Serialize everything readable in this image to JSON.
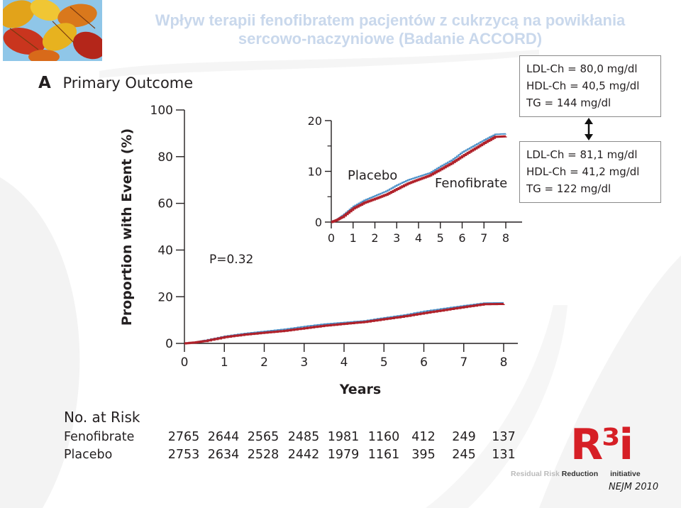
{
  "slide": {
    "title_line1": "Wpływ terapii fenofibratem pacjentów z  cukrzycą na powikłania",
    "title_line2": "sercowo-naczyniowe (Badanie ACCORD)"
  },
  "panel": {
    "letter": "A",
    "title": "Primary Outcome",
    "pvalue": "P=0.32"
  },
  "lipids": {
    "placebo_box": [
      "LDL-Ch = 80,0 mg/dl",
      "HDL-Ch = 40,5 mg/dl",
      "TG = 144 mg/dl"
    ],
    "fenofibrate_box": [
      "LDL-Ch = 81,1 mg/dl",
      "HDL-Ch = 41,2 mg/dl",
      "TG = 122 mg/dl"
    ]
  },
  "risk_table": {
    "header": "No. at Risk",
    "rows": [
      {
        "label": "Fenofibrate",
        "values": [
          "2765",
          "2644",
          "2565",
          "2485",
          "1981",
          "1160",
          "412",
          "249",
          "137"
        ]
      },
      {
        "label": "Placebo",
        "values": [
          "2753",
          "2634",
          "2528",
          "2442",
          "1979",
          "1161",
          "395",
          "245",
          "131"
        ]
      }
    ]
  },
  "logo": {
    "brand": "R³i",
    "tagline_1": "Residual Risk",
    "tagline_2": "Reduction",
    "tagline_3": "initiative"
  },
  "source": "NEJM 2010",
  "colors": {
    "fenofibrate": "#b0212a",
    "placebo": "#4a90c8",
    "title": "#c9d8ec"
  },
  "chart_data": [
    {
      "type": "line",
      "title": "Primary Outcome",
      "xlabel": "Years",
      "ylabel": "Proportion with Event (%)",
      "xlim": [
        0,
        8
      ],
      "ylim": [
        0,
        100
      ],
      "x_ticks": [
        0,
        1,
        2,
        3,
        4,
        5,
        6,
        7,
        8
      ],
      "y_ticks": [
        0,
        20,
        40,
        60,
        80,
        100
      ],
      "grid": false,
      "series": [
        {
          "name": "Placebo",
          "x": [
            0,
            0.25,
            0.5,
            1,
            1.5,
            2,
            2.5,
            3,
            3.5,
            4,
            4.5,
            5,
            5.5,
            6,
            6.5,
            7,
            7.5,
            8
          ],
          "y": [
            0,
            0.5,
            1.3,
            3.1,
            4.3,
            5.2,
            6.1,
            7.3,
            8.3,
            9.0,
            9.7,
            11.0,
            12.2,
            13.8,
            15.0,
            16.2,
            17.3,
            17.4
          ]
        },
        {
          "name": "Fenofibrate",
          "x": [
            0,
            0.25,
            0.5,
            1,
            1.5,
            2,
            2.5,
            3,
            3.5,
            4,
            4.5,
            5,
            5.5,
            6,
            6.5,
            7,
            7.5,
            8
          ],
          "y": [
            0,
            0.4,
            1.0,
            2.7,
            3.8,
            4.6,
            5.4,
            6.5,
            7.6,
            8.4,
            9.2,
            10.4,
            11.6,
            13.0,
            14.3,
            15.6,
            16.8,
            16.9
          ]
        }
      ]
    },
    {
      "type": "line",
      "title": "",
      "xlabel": "",
      "ylabel": "",
      "xlim": [
        0,
        8
      ],
      "ylim": [
        0,
        20
      ],
      "x_ticks": [
        0,
        1,
        2,
        3,
        4,
        5,
        6,
        7,
        8
      ],
      "y_ticks": [
        0,
        10,
        20
      ],
      "grid": false,
      "annotations": [
        "Placebo",
        "Fenofibrate"
      ],
      "series": [
        {
          "name": "Placebo",
          "x": [
            0,
            0.25,
            0.5,
            1,
            1.5,
            2,
            2.5,
            3,
            3.5,
            4,
            4.5,
            5,
            5.5,
            6,
            6.5,
            7,
            7.5,
            8
          ],
          "y": [
            0,
            0.5,
            1.3,
            3.1,
            4.3,
            5.2,
            6.1,
            7.3,
            8.3,
            9.0,
            9.7,
            11.0,
            12.2,
            13.8,
            15.0,
            16.2,
            17.3,
            17.4
          ]
        },
        {
          "name": "Fenofibrate",
          "x": [
            0,
            0.25,
            0.5,
            1,
            1.5,
            2,
            2.5,
            3,
            3.5,
            4,
            4.5,
            5,
            5.5,
            6,
            6.5,
            7,
            7.5,
            8
          ],
          "y": [
            0,
            0.4,
            1.0,
            2.7,
            3.8,
            4.6,
            5.4,
            6.5,
            7.6,
            8.4,
            9.2,
            10.4,
            11.6,
            13.0,
            14.3,
            15.6,
            16.8,
            16.9
          ]
        }
      ]
    }
  ]
}
